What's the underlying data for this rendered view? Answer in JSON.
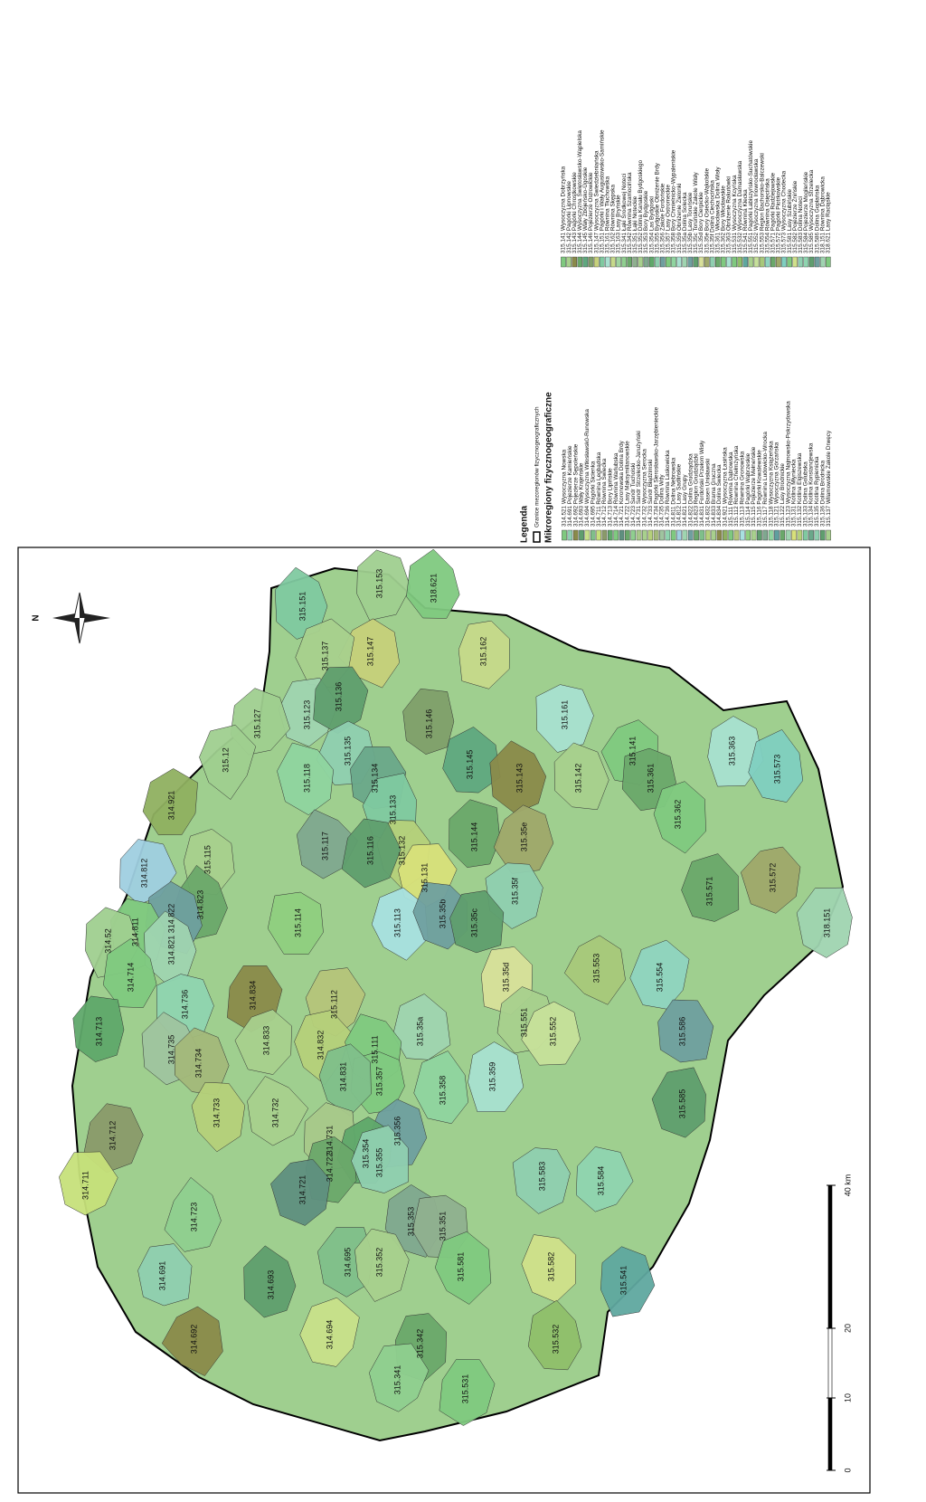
{
  "legend": {
    "title": "Legenda",
    "boundary_label": "Granice mezoregionów fizycznogeograficznych",
    "subtitle": "Mikroregiony fizycznogeograficzne",
    "items": [
      {
        "label": "314.521 Wysoczyzna Nowska",
        "color": "#7fc97f"
      },
      {
        "label": "314.691 Pojezierze Kamieńskie",
        "color": "#8fcfb0"
      },
      {
        "label": "314.692 Pojezierze Sępoleńskie",
        "color": "#8a8a4a"
      },
      {
        "label": "314.693 Wały Krajeńskie",
        "color": "#5f9e6e"
      },
      {
        "label": "314.694 Wysoczyzna Wtłosławsk0-Runowska",
        "color": "#c8e08a"
      },
      {
        "label": "314.695 Pagórki Sicienka",
        "color": "#7fbf8a"
      },
      {
        "label": "314.711 Równina Legbądska",
        "color": "#c6e07a"
      },
      {
        "label": "314.712 Równina Świecka",
        "color": "#8a9a6a"
      },
      {
        "label": "314.713 Bory Lipińskie",
        "color": "#5fa86a"
      },
      {
        "label": "314.714 Równina Warlubska",
        "color": "#7fc97f"
      },
      {
        "label": "314.721 Koronowska Dolina Brdy",
        "color": "#5f8f7f"
      },
      {
        "label": "314.722 Lasy Maksymilianowskie",
        "color": "#6aa86a"
      },
      {
        "label": "314.723 Sandr Tucholski",
        "color": "#8fcf8f"
      },
      {
        "label": "314.731 Sandr Strzelecko-Jarużyński",
        "color": "#a8c88a"
      },
      {
        "label": "314.732 Wysoczyzna Serocka",
        "color": "#a8d08d"
      },
      {
        "label": "314.733 Sandr Błądzimski",
        "color": "#b5d07a"
      },
      {
        "label": "314.734 Pagórki Sierosławsko-Jarzębienieckie",
        "color": "#a3b87a"
      },
      {
        "label": "314.735 Dolina Wdy",
        "color": "#9fc49f"
      },
      {
        "label": "314.736 Równina Laskowicka",
        "color": "#8fd4b0"
      },
      {
        "label": "314.811 Dolina Nebrowska",
        "color": "#7fc97f"
      },
      {
        "label": "314.812 Lasy Sadlińskie",
        "color": "#9fcfe0"
      },
      {
        "label": "314.821 Lasy Grupy",
        "color": "#9fd4b0"
      },
      {
        "label": "314.822 Dolina Grudziądzka",
        "color": "#6f9f9f"
      },
      {
        "label": "314.823 Region Grudziądzki",
        "color": "#6aa86a"
      },
      {
        "label": "314.831 Fordoński Przełom Wisły",
        "color": "#7fbf8a"
      },
      {
        "label": "314.832 Basen Unisławski",
        "color": "#b5d07a"
      },
      {
        "label": "314.833 Brama Gruczna",
        "color": "#a8d08d"
      },
      {
        "label": "314.834 Dolina Świecka",
        "color": "#8a8a4a"
      },
      {
        "label": "314.921 Wysoczyzna Łasińska",
        "color": "#8fb060"
      },
      {
        "label": "315.111 Równina Dąbrowska",
        "color": "#7fc97f"
      },
      {
        "label": "315.112 Równina Chełmżyńska",
        "color": "#b5c47a"
      },
      {
        "label": "315.113 Równina Gronowska",
        "color": "#a8e0e0"
      },
      {
        "label": "315.114 Pagórki Wąbrzeskie",
        "color": "#8fcf7f"
      },
      {
        "label": "315.115 Pojezierze Mełneńskie",
        "color": "#a8d08d"
      },
      {
        "label": "315.116 Pagórki Kowalewskie",
        "color": "#5f9e6e"
      },
      {
        "label": "315.117 Równina Ludowicko-Wrocka",
        "color": "#7fa88f"
      },
      {
        "label": "315.118 Wysoczyzna Książeńska",
        "color": "#8fd49f"
      },
      {
        "label": "315.121 Wysoczyzna  Górzańska",
        "color": "#5f9f9f"
      },
      {
        "label": "315.122 Lasy Brodnickie",
        "color": "#6aa86a"
      },
      {
        "label": "315.123 Wysoczyzna  Najmowsko-Pokrzydowska",
        "color": "#9fd4b0"
      },
      {
        "label": "315.131 Kotlina Młyniecka",
        "color": "#d8e07a"
      },
      {
        "label": "315.132 Kotlina Elgiszewska",
        "color": "#b5d07a"
      },
      {
        "label": "315.133 Dolina Golubska",
        "color": "#7fc9a0"
      },
      {
        "label": "315.134 Kotlina Konstancjewska",
        "color": "#6aa88a"
      },
      {
        "label": "315.135 Kotlina Rypienicka",
        "color": "#8fcfb0"
      },
      {
        "label": "315.136 Dolina Brodnicka",
        "color": "#5f9e6e"
      },
      {
        "label": "315.137 Wilamowskie Zakole Drwęcy",
        "color": "#a8d08d"
      },
      {
        "label": "315.141 Wysoczyzna Dobrzyńska",
        "color": "#7fc97f"
      },
      {
        "label": "315.142 Pagórki Lipnowskie",
        "color": "#a8d08d"
      },
      {
        "label": "315.143 Pagórki Chrostkowskie",
        "color": "#8a8a4a"
      },
      {
        "label": "315.144 Wysoczyzna Świętosławsko-Wąpielska",
        "color": "#6aa86a"
      },
      {
        "label": "315.145 Wały Zbójeńsko-Ugoskie",
        "color": "#5fa87f"
      },
      {
        "label": "315.146 Pojezierze Ostrowickie",
        "color": "#7f9f6a"
      },
      {
        "label": "315.147 Wysoczyzna Świedziebniańska",
        "color": "#c6d07a"
      },
      {
        "label": "315.151 Pagórki i Wały Augustowsko-Samińskie",
        "color": "#7fc9a0"
      },
      {
        "label": "315.161 Równina Tłuchowska",
        "color": "#a8e0d0"
      },
      {
        "label": "315.162 Równina Skępska",
        "color": "#c6d98a"
      },
      {
        "label": "315.163 Lasy Bryńskie",
        "color": "#9fd49f"
      },
      {
        "label": "315.341 Łąki Środkowej Noteci",
        "color": "#8fcf8f"
      },
      {
        "label": "315.342 Równina Szamocińska",
        "color": "#6aa86a"
      },
      {
        "label": "315.351 Łąki Noteckie",
        "color": "#8fb08f"
      },
      {
        "label": "315.352 Dolina Kanału Bydgoskiego",
        "color": "#a8d08d"
      },
      {
        "label": "315.353 Bory Bydgoskie",
        "color": "#7fa88f"
      },
      {
        "label": "315.354 Las Bydgoski",
        "color": "#5fa86a"
      },
      {
        "label": "315.355 Bydgoskie Obniżenie Brdy",
        "color": "#8fcfb0"
      },
      {
        "label": "315.356 Zakole Fordońskie",
        "color": "#6f9f9f"
      },
      {
        "label": "315.357 Lasy Ostromeckie",
        "color": "#7fc97f"
      },
      {
        "label": "315.358 Bory Chmielnicko-Wypaleniskie",
        "color": "#8fd49f"
      },
      {
        "label": "315.359 Obniżenie Zielonki",
        "color": "#a8e0d0"
      },
      {
        "label": "315.35a Dolina Solecka",
        "color": "#9fd4b0"
      },
      {
        "label": "315.35b Lasy Toruńskie",
        "color": "#6f9f9f"
      },
      {
        "label": "315.35c Toruńskie Zakole Wisły",
        "color": "#5f9e6e"
      },
      {
        "label": "315.35d Bory Cierpickie",
        "color": "#d8e09a"
      },
      {
        "label": "315.35e Bory Osiecko-Wąkolskie",
        "color": "#9fa86a"
      },
      {
        "label": "315.35f Dolina Ciechocińska",
        "color": "#8fcfb0"
      },
      {
        "label": "315.361 Włocławska Dolina Wisły",
        "color": "#6aa86a"
      },
      {
        "label": "315.362 Bory Włocławskie",
        "color": "#7fc97f"
      },
      {
        "label": "315.363 Obniżenie Rakutówki",
        "color": "#a8e0d0"
      },
      {
        "label": "315.531 Wysoczyzna Kcyńska",
        "color": "#7fc97f"
      },
      {
        "label": "315.532 Wysoczyzna Damasławska",
        "color": "#8fbf6a"
      },
      {
        "label": "315.541 Równina Kłecka",
        "color": "#5fa89f"
      },
      {
        "label": "315.551 Pagórki Łabiszyńsko-Suchatówskie",
        "color": "#a8d08d"
      },
      {
        "label": "315.552 Wysoczyzna Inowrocławska",
        "color": "#c6e09a"
      },
      {
        "label": "315.553 Region Bachorsko-Balczewski",
        "color": "#a8c87a"
      },
      {
        "label": "315.554 Równina Osięcińska",
        "color": "#8fd4c0"
      },
      {
        "label": "315.571 Pagórki Radziejowskie",
        "color": "#6aa86a"
      },
      {
        "label": "315.572 Pagórki Piotrkowskie",
        "color": "#9fa86a"
      },
      {
        "label": "315.573 Wysoczyzna Chodecka",
        "color": "#7fcfc0"
      },
      {
        "label": "315.581 Lasy Szubińskie",
        "color": "#7fc97f"
      },
      {
        "label": "315.582 Pojezierze Żnińskie",
        "color": "#d0e08a"
      },
      {
        "label": "315.583 Dolina Noteci",
        "color": "#8fcfb0"
      },
      {
        "label": "315.584 Pojezierze Mogileńskie",
        "color": "#8fd4b0"
      },
      {
        "label": "315.585 Wysoczyzna Strzelecka",
        "color": "#5f9e6e"
      },
      {
        "label": "315.586 Dolina Gopłańska",
        "color": "#6f9f9f"
      },
      {
        "label": "318.151 Równina Dąbrowicka",
        "color": "#9fd4b0"
      },
      {
        "label": "318.621 Lasy Raciąskie",
        "color": "#7fc97f"
      }
    ]
  },
  "map": {
    "north": "N",
    "regions": [
      {
        "label": "315.151"
      },
      {
        "label": "315.153"
      },
      {
        "label": "318.621"
      },
      {
        "label": "315.147"
      },
      {
        "label": "315.137"
      },
      {
        "label": "315.162"
      },
      {
        "label": "315.123"
      },
      {
        "label": "315.136"
      },
      {
        "label": "315.146"
      },
      {
        "label": "315.161"
      },
      {
        "label": "315.127"
      },
      {
        "label": "315.135"
      },
      {
        "label": "315.145"
      },
      {
        "label": "315.141"
      },
      {
        "label": "315.12"
      },
      {
        "label": "315.118"
      },
      {
        "label": "315.134"
      },
      {
        "label": "315.143"
      },
      {
        "label": "315.142"
      },
      {
        "label": "315.361"
      },
      {
        "label": "315.363"
      },
      {
        "label": "315.573"
      },
      {
        "label": "315.362"
      },
      {
        "label": "315.133"
      },
      {
        "label": "315.132"
      },
      {
        "label": "315.117"
      },
      {
        "label": "315.116"
      },
      {
        "label": "315.144"
      },
      {
        "label": "315.35e"
      },
      {
        "label": "314.921"
      },
      {
        "label": "315.115"
      },
      {
        "label": "315.571"
      },
      {
        "label": "315.572"
      },
      {
        "label": "315.131"
      },
      {
        "label": "315.35f"
      },
      {
        "label": "314.812"
      },
      {
        "label": "314.823"
      },
      {
        "label": "314.822"
      },
      {
        "label": "315.114"
      },
      {
        "label": "315.113"
      },
      {
        "label": "315.35b"
      },
      {
        "label": "315.35c"
      },
      {
        "label": "318.151"
      },
      {
        "label": "314.811"
      },
      {
        "label": "314.821"
      },
      {
        "label": "314.52"
      },
      {
        "label": "314.714"
      },
      {
        "label": "315.553"
      },
      {
        "label": "315.554"
      },
      {
        "label": "315.35d"
      },
      {
        "label": "315.112"
      },
      {
        "label": "314.834"
      },
      {
        "label": "314.713"
      },
      {
        "label": "314.736"
      },
      {
        "label": "315.551"
      },
      {
        "label": "315.552"
      },
      {
        "label": "315.35a"
      },
      {
        "label": "314.833"
      },
      {
        "label": "314.832"
      },
      {
        "label": "315.111"
      },
      {
        "label": "315.586"
      },
      {
        "label": "314.735"
      },
      {
        "label": "314.734"
      },
      {
        "label": "315.357"
      },
      {
        "label": "315.359"
      },
      {
        "label": "315.358"
      },
      {
        "label": "314.831"
      },
      {
        "label": "315.585"
      },
      {
        "label": "314.733"
      },
      {
        "label": "314.732"
      },
      {
        "label": "314.712"
      },
      {
        "label": "314.731"
      },
      {
        "label": "315.356"
      },
      {
        "label": "315.354"
      },
      {
        "label": "314.722"
      },
      {
        "label": "315.355"
      },
      {
        "label": "314.721"
      },
      {
        "label": "314.711"
      },
      {
        "label": "315.583"
      },
      {
        "label": "315.584"
      },
      {
        "label": "314.723"
      },
      {
        "label": "315.353"
      },
      {
        "label": "315.351"
      },
      {
        "label": "315.581"
      },
      {
        "label": "315.582"
      },
      {
        "label": "314.691"
      },
      {
        "label": "314.695"
      },
      {
        "label": "315.352"
      },
      {
        "label": "314.693"
      },
      {
        "label": "315.541"
      },
      {
        "label": "315.532"
      },
      {
        "label": "314.692"
      },
      {
        "label": "314.694"
      },
      {
        "label": "315.342"
      },
      {
        "label": "315.341"
      },
      {
        "label": "315.531"
      }
    ],
    "scale_bar": {
      "labels": [
        "0",
        "10",
        "20",
        "40 km"
      ]
    }
  }
}
